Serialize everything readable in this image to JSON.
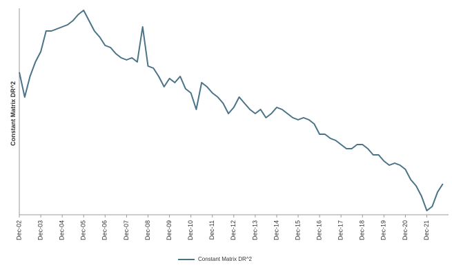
{
  "chart_data": {
    "type": "line",
    "y_label": "Constant Matrix DR^2",
    "categories": [
      "Dec-02",
      null,
      null,
      null,
      "Dec-03",
      null,
      null,
      null,
      "Dec-04",
      null,
      null,
      null,
      "Dec-05",
      null,
      null,
      null,
      "Dec-06",
      null,
      null,
      null,
      "Dec-07",
      null,
      null,
      null,
      "Dec-08",
      null,
      null,
      null,
      "Dec-09",
      null,
      null,
      null,
      "Dec-10",
      null,
      null,
      null,
      "Dec-11",
      null,
      null,
      null,
      "Dec-12",
      null,
      null,
      null,
      "Dec-13",
      null,
      null,
      null,
      "Dec-14",
      null,
      null,
      null,
      "Dec-15",
      null,
      null,
      null,
      "Dec-16",
      null,
      null,
      null,
      "Dec-17",
      null,
      null,
      null,
      "Dec-18",
      null,
      null,
      null,
      "Dec-19",
      null,
      null,
      null,
      "Dec-20",
      null,
      null,
      null,
      "Dec-21",
      null,
      null,
      null
    ],
    "series": [
      {
        "name": "Constant Matrix DR^2",
        "color": "#4a7388",
        "values": [
          69,
          57,
          67,
          74,
          79,
          89,
          89,
          90,
          91,
          92,
          94,
          97,
          99,
          94,
          89,
          86,
          82,
          81,
          78,
          76,
          75,
          76,
          74,
          91,
          72,
          71,
          67,
          62,
          66,
          64,
          67,
          61,
          59,
          51,
          64,
          62,
          59,
          57,
          54,
          49,
          52,
          57,
          54,
          51,
          49,
          51,
          47,
          49,
          52,
          51,
          49,
          47,
          46,
          47,
          46,
          44,
          39,
          39,
          37,
          36,
          34,
          32,
          32,
          34,
          34,
          32,
          29,
          29,
          26,
          24,
          25,
          24,
          22,
          17,
          14,
          9,
          2,
          4,
          11,
          15
        ]
      }
    ],
    "ylim": [
      0,
      100
    ],
    "legend": "bottom"
  }
}
